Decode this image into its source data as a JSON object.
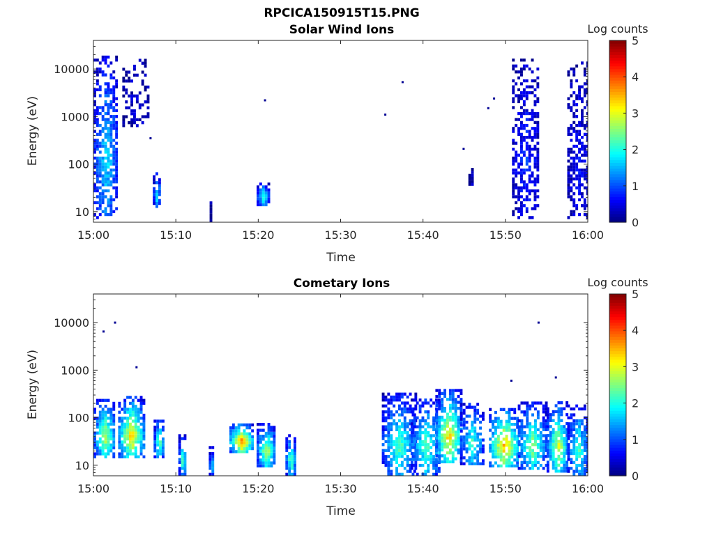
{
  "figure": {
    "title": "RPCICA150915T15.PNG"
  },
  "colorbar": {
    "label": "Log counts",
    "ticks": [
      "0",
      "1",
      "2",
      "3",
      "4",
      "5"
    ],
    "range": [
      0,
      5
    ],
    "colormap": "jet"
  },
  "chart_data": [
    {
      "type": "heatmap",
      "title": "Solar Wind Ions",
      "xlabel": "Time",
      "ylabel": "Energy (eV)",
      "x_ticks": [
        "15:00",
        "15:10",
        "15:20",
        "15:30",
        "15:40",
        "15:50",
        "16:00"
      ],
      "y_ticks": [
        "10",
        "100",
        "1000",
        "10000"
      ],
      "y_scale": "log",
      "xlim": [
        "15:00",
        "16:00"
      ],
      "ylim": [
        6,
        40000
      ],
      "value_label": "Log counts",
      "value_range": [
        0,
        5
      ],
      "clusters": [
        {
          "t0": 0.0,
          "t1": 2.8,
          "emin": 7,
          "emax": 18000,
          "peak": 1.8,
          "density": 0.55
        },
        {
          "t0": 3.5,
          "t1": 6.5,
          "emin": 600,
          "emax": 15000,
          "peak": 0.4,
          "density": 0.3
        },
        {
          "t0": 7.2,
          "t1": 8.0,
          "emin": 12,
          "emax": 60,
          "peak": 2.0,
          "density": 0.75
        },
        {
          "t0": 14.1,
          "t1": 14.2,
          "emin": 6,
          "emax": 16,
          "peak": 0.5,
          "density": 1.0
        },
        {
          "t0": 19.8,
          "t1": 21.2,
          "emin": 13,
          "emax": 38,
          "peak": 2.1,
          "density": 0.85
        },
        {
          "t0": 45.5,
          "t1": 46.0,
          "emin": 35,
          "emax": 80,
          "peak": 0.4,
          "density": 0.7
        },
        {
          "t0": 50.8,
          "t1": 54.0,
          "emin": 7,
          "emax": 16000,
          "peak": 0.8,
          "density": 0.45
        },
        {
          "t0": 57.5,
          "t1": 60.0,
          "emin": 7,
          "emax": 14000,
          "peak": 0.6,
          "density": 0.45
        }
      ],
      "isolated_points": [
        {
          "t": 20.7,
          "e": 2200
        },
        {
          "t": 35.3,
          "e": 1100
        },
        {
          "t": 37.4,
          "e": 5300
        },
        {
          "t": 44.8,
          "e": 210
        },
        {
          "t": 47.8,
          "e": 1500
        },
        {
          "t": 48.5,
          "e": 2400
        },
        {
          "t": 6.8,
          "e": 350
        }
      ]
    },
    {
      "type": "heatmap",
      "title": "Cometary Ions",
      "xlabel": "Time",
      "ylabel": "Energy (eV)",
      "x_ticks": [
        "15:00",
        "15:10",
        "15:20",
        "15:30",
        "15:40",
        "15:50",
        "16:00"
      ],
      "y_ticks": [
        "10",
        "100",
        "1000",
        "10000"
      ],
      "y_scale": "log",
      "xlim": [
        "15:00",
        "16:00"
      ],
      "ylim": [
        6,
        40000
      ],
      "value_label": "Log counts",
      "value_range": [
        0,
        5
      ],
      "clusters": [
        {
          "t0": 0.0,
          "t1": 2.6,
          "emin": 14,
          "emax": 220,
          "peak": 2.8,
          "density": 0.7
        },
        {
          "t0": 3.0,
          "t1": 6.0,
          "emin": 14,
          "emax": 250,
          "peak": 3.4,
          "density": 0.7
        },
        {
          "t0": 7.3,
          "t1": 8.4,
          "emin": 14,
          "emax": 90,
          "peak": 2.6,
          "density": 0.75
        },
        {
          "t0": 10.3,
          "t1": 11.2,
          "emin": 6,
          "emax": 40,
          "peak": 2.4,
          "density": 0.75
        },
        {
          "t0": 14.0,
          "t1": 14.4,
          "emin": 6,
          "emax": 22,
          "peak": 2.3,
          "density": 0.8
        },
        {
          "t0": 16.5,
          "t1": 19.2,
          "emin": 18,
          "emax": 70,
          "peak": 3.8,
          "density": 0.8
        },
        {
          "t0": 19.8,
          "t1": 22.0,
          "emin": 9,
          "emax": 70,
          "peak": 2.8,
          "density": 0.75
        },
        {
          "t0": 23.3,
          "t1": 24.4,
          "emin": 6,
          "emax": 40,
          "peak": 2.6,
          "density": 0.8
        },
        {
          "t0": 35.0,
          "t1": 39.0,
          "emin": 6,
          "emax": 300,
          "peak": 2.3,
          "density": 0.6
        },
        {
          "t0": 38.5,
          "t1": 42.0,
          "emin": 6,
          "emax": 250,
          "peak": 2.3,
          "density": 0.55
        },
        {
          "t0": 41.5,
          "t1": 44.5,
          "emin": 11,
          "emax": 350,
          "peak": 3.4,
          "density": 0.7
        },
        {
          "t0": 44.5,
          "t1": 47.2,
          "emin": 10,
          "emax": 200,
          "peak": 2.2,
          "density": 0.55
        },
        {
          "t0": 48.0,
          "t1": 51.5,
          "emin": 9,
          "emax": 150,
          "peak": 3.6,
          "density": 0.65
        },
        {
          "t0": 51.5,
          "t1": 54.8,
          "emin": 8,
          "emax": 200,
          "peak": 2.6,
          "density": 0.6
        },
        {
          "t0": 55.0,
          "t1": 57.5,
          "emin": 7,
          "emax": 200,
          "peak": 3.0,
          "density": 0.65
        },
        {
          "t0": 57.5,
          "t1": 60.0,
          "emin": 6,
          "emax": 180,
          "peak": 2.2,
          "density": 0.6
        }
      ],
      "isolated_points": [
        {
          "t": 1.1,
          "e": 6500
        },
        {
          "t": 2.5,
          "e": 10000
        },
        {
          "t": 53.9,
          "e": 10000
        },
        {
          "t": 5.1,
          "e": 1150
        },
        {
          "t": 50.6,
          "e": 600
        },
        {
          "t": 56.0,
          "e": 700
        }
      ]
    }
  ]
}
